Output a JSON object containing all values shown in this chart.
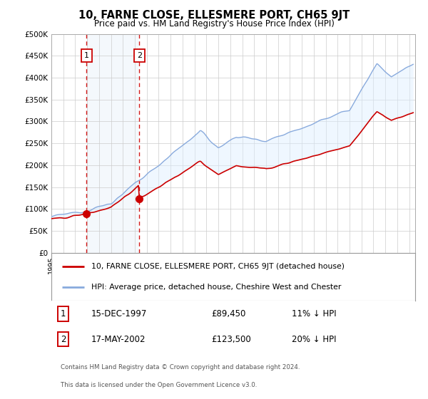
{
  "title": "10, FARNE CLOSE, ELLESMERE PORT, CH65 9JT",
  "subtitle": "Price paid vs. HM Land Registry's House Price Index (HPI)",
  "ylim": [
    0,
    500000
  ],
  "xlim_start": 1995.0,
  "xlim_end": 2025.5,
  "sale1_date": 1997.958,
  "sale1_price": 89450,
  "sale1_label": "1",
  "sale1_text": "15-DEC-1997",
  "sale1_price_text": "£89,450",
  "sale1_hpi_text": "11% ↓ HPI",
  "sale2_date": 2002.37,
  "sale2_price": 123500,
  "sale2_label": "2",
  "sale2_text": "17-MAY-2002",
  "sale2_price_text": "£123,500",
  "sale2_hpi_text": "20% ↓ HPI",
  "legend_line1": "10, FARNE CLOSE, ELLESMERE PORT, CH65 9JT (detached house)",
  "legend_line2": "HPI: Average price, detached house, Cheshire West and Chester",
  "footer1": "Contains HM Land Registry data © Crown copyright and database right 2024.",
  "footer2": "This data is licensed under the Open Government Licence v3.0.",
  "line_color_price": "#cc0000",
  "line_color_hpi": "#88aadd",
  "shade_color": "#ddeeff",
  "background_color": "#ffffff",
  "grid_color": "#cccccc"
}
